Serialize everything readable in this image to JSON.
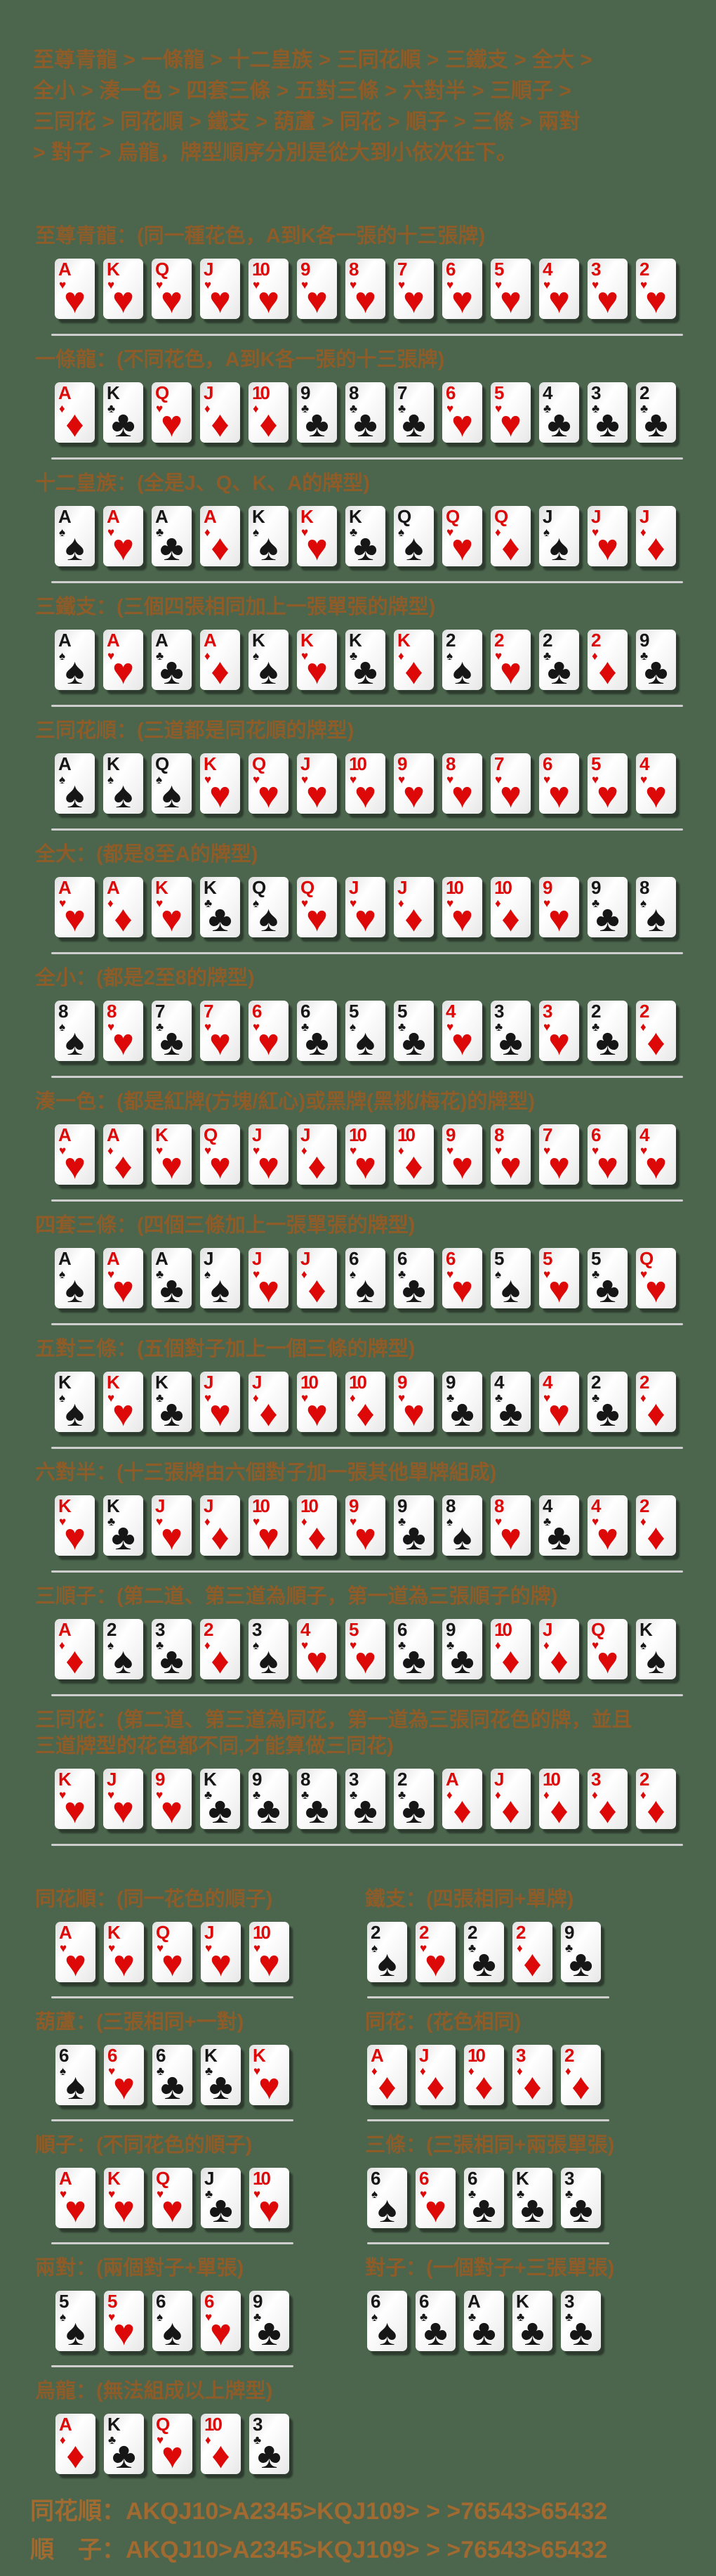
{
  "colors": {
    "background": "#4b664d",
    "heading_brown": "#8d5c28",
    "footer_brown": "#a06a30",
    "card_red": "#dd0909",
    "card_black": "#161616",
    "divider_gray": "#cfcfcf"
  },
  "suit_symbols": {
    "h": "♥",
    "d": "♦",
    "s": "♠",
    "c": "♣"
  },
  "suit_colors": {
    "h": "red",
    "d": "red",
    "s": "black",
    "c": "black"
  },
  "intro": {
    "lines": [
      "至尊青龍 > 一條龍 > 十二皇族 > 三同花順 > 三鐵支 > 全大 >",
      "全小 > 湊一色 > 四套三條 > 五對三條 > 六對半 > 三順子 >",
      "三同花 > 同花順 > 鐵支 > 葫蘆 > 同花 > 順子 > 三條 > 兩對",
      "> 對子 > 烏龍，牌型順序分別是從大到小依次往下。"
    ]
  },
  "sections": [
    {
      "title": "至尊青龍：(同一種花色，A到K各一張的十三張牌)",
      "cards": [
        "Ah",
        "Kh",
        "Qh",
        "Jh",
        "10h",
        "9h",
        "8h",
        "7h",
        "6h",
        "5h",
        "4h",
        "3h",
        "2h"
      ]
    },
    {
      "title": "一條龍：(不同花色，A到K各一張的十三張牌)",
      "cards": [
        "Ad",
        "Kc",
        "Qh",
        "Jd",
        "10d",
        "9c",
        "8c",
        "7c",
        "6h",
        "5h",
        "4c",
        "3c",
        "2c"
      ]
    },
    {
      "title": "十二皇族：(全是J、Q、K、A的牌型)",
      "cards": [
        "As",
        "Ah",
        "Ac",
        "Ad",
        "Ks",
        "Kh",
        "Kc",
        "Qs",
        "Qh",
        "Qd",
        "Js",
        "Jh",
        "Jd"
      ]
    },
    {
      "title": "三鐵支：(三個四張相同加上一張單張的牌型)",
      "cards": [
        "As",
        "Ah",
        "Ac",
        "Ad",
        "Ks",
        "Kh",
        "Kc",
        "Kd",
        "2s",
        "2h",
        "2c",
        "2d",
        "9c"
      ]
    },
    {
      "title": "三同花順：(三道都是同花順的牌型)",
      "cards": [
        "As",
        "Ks",
        "Qs",
        "Kh",
        "Qh",
        "Jh",
        "10h",
        "9h",
        "8h",
        "7h",
        "6h",
        "5h",
        "4h"
      ]
    },
    {
      "title": "全大：(都是8至A的牌型)",
      "cards": [
        "Ah",
        "Ad",
        "Kh",
        "Kc",
        "Qs",
        "Qh",
        "Jh",
        "Jd",
        "10h",
        "10d",
        "9h",
        "9c",
        "8s"
      ]
    },
    {
      "title": "全小：(都是2至8的牌型)",
      "cards": [
        "8s",
        "8h",
        "7c",
        "7h",
        "6h",
        "6c",
        "5s",
        "5c",
        "4h",
        "3c",
        "3h",
        "2c",
        "2d"
      ]
    },
    {
      "title": "湊一色：(都是紅牌(方塊/紅心)或黑牌(黑桃/梅花)的牌型)",
      "cards": [
        "Ah",
        "Ad",
        "Kh",
        "Qh",
        "Jh",
        "Jd",
        "10h",
        "10d",
        "9h",
        "8h",
        "7h",
        "6h",
        "4h"
      ]
    },
    {
      "title": "四套三條：(四個三條加上一張單張的牌型)",
      "cards": [
        "As",
        "Ah",
        "Ac",
        "Js",
        "Jh",
        "Jd",
        "6s",
        "6c",
        "6h",
        "5s",
        "5h",
        "5c",
        "Qh"
      ]
    },
    {
      "title": "五對三條：(五個對子加上一個三條的牌型)",
      "cards": [
        "Ks",
        "Kh",
        "Kc",
        "Jh",
        "Jd",
        "10h",
        "10d",
        "9h",
        "9c",
        "4c",
        "4h",
        "2c",
        "2d"
      ]
    },
    {
      "title": "六對半：(十三張牌由六個對子加一張其他單牌組成)",
      "cards": [
        "Kh",
        "Kc",
        "Jh",
        "Jd",
        "10h",
        "10d",
        "9h",
        "9c",
        "8s",
        "8h",
        "4c",
        "4h",
        "2d"
      ]
    },
    {
      "title": "三順子：(第二道、第三道為順子，第一道為三張順子的牌)",
      "cards": [
        "Ad",
        "2s",
        "3c",
        "2d",
        "3s",
        "4h",
        "5h",
        "6c",
        "9c",
        "10d",
        "Jd",
        "Qh",
        "Ks"
      ]
    },
    {
      "title": "三同花：(第二道、第三道為同花，第一道為三張同花色的牌，並且\n三道牌型的花色都不同,才能算做三同花)",
      "cards": [
        "Kh",
        "Jh",
        "9h",
        "Kc",
        "9c",
        "8c",
        "3c",
        "2c",
        "Ad",
        "Jd",
        "10d",
        "3d",
        "2d"
      ]
    }
  ],
  "pair_rows": [
    {
      "left": {
        "title": "同花順：(同一花色的順子)",
        "cards": [
          "Ah",
          "Kh",
          "Qh",
          "Jh",
          "10h"
        ],
        "divider": true
      },
      "right": {
        "title": "鐵支：(四張相同+單牌)",
        "cards": [
          "2s",
          "2h",
          "2c",
          "2d",
          "9c"
        ],
        "divider": true
      }
    },
    {
      "left": {
        "title": "葫蘆：(三張相同+一對)",
        "cards": [
          "6s",
          "6h",
          "6c",
          "Kc",
          "Kh"
        ],
        "divider": true
      },
      "right": {
        "title": "同花：(花色相同)",
        "cards": [
          "Ad",
          "Jd",
          "10d",
          "3d",
          "2d"
        ],
        "divider": true
      }
    },
    {
      "left": {
        "title": "順子：(不同花色的順子)",
        "cards": [
          "Ah",
          "Kh",
          "Qh",
          "Jc",
          "10h"
        ],
        "divider": true
      },
      "right": {
        "title": "三條：(三張相同+兩張單張)",
        "cards": [
          "6s",
          "6h",
          "6c",
          "Kc",
          "3c"
        ],
        "divider": true
      }
    },
    {
      "left": {
        "title": "兩對：(兩個對子+單張)",
        "cards": [
          "5s",
          "5h",
          "6s",
          "6h",
          "9c"
        ],
        "divider": true
      },
      "right": {
        "title": "對子：(一個對子+三張單張)",
        "cards": [
          "6s",
          "6c",
          "Ac",
          "Kc",
          "3c"
        ],
        "divider": false
      }
    },
    {
      "left": {
        "title": "烏龍：(無法組成以上牌型)",
        "cards": [
          "Ad",
          "Kc",
          "Qh",
          "10d",
          "3c"
        ],
        "divider": false
      },
      "right": null
    }
  ],
  "footer": {
    "lines": [
      "同花順：AKQJ10>A2345>KQJ109> > >76543>65432",
      "順　子：AKQJ10>A2345>KQJ109> > >76543>65432"
    ]
  }
}
